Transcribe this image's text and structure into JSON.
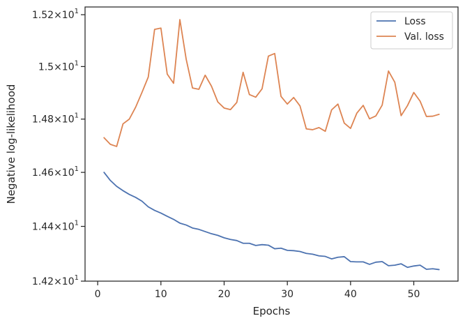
{
  "chart_data": {
    "type": "line",
    "title": "",
    "xlabel": "Epochs",
    "ylabel": "Negative log-likelihood",
    "xlim": [
      -2,
      57
    ],
    "ylim": [
      14.2,
      15.23
    ],
    "yscale": "log",
    "grid": false,
    "legend": "top-right",
    "x_ticks": [
      {
        "value": 0,
        "label": "0"
      },
      {
        "value": 10,
        "label": "10"
      },
      {
        "value": 20,
        "label": "20"
      },
      {
        "value": 30,
        "label": "30"
      },
      {
        "value": 40,
        "label": "40"
      },
      {
        "value": 50,
        "label": "50"
      }
    ],
    "y_ticks": [
      {
        "value": 14.2,
        "base": "1.42",
        "exp": "1"
      },
      {
        "value": 14.4,
        "base": "1.44",
        "exp": "1"
      },
      {
        "value": 14.6,
        "base": "1.46",
        "exp": "1"
      },
      {
        "value": 14.8,
        "base": "1.48",
        "exp": "1"
      },
      {
        "value": 15.0,
        "base": "1.5",
        "exp": "1"
      },
      {
        "value": 15.2,
        "base": "1.52",
        "exp": "1"
      }
    ],
    "x": [
      1,
      2,
      3,
      4,
      5,
      6,
      7,
      8,
      9,
      10,
      11,
      12,
      13,
      14,
      15,
      16,
      17,
      18,
      19,
      20,
      21,
      22,
      23,
      24,
      25,
      26,
      27,
      28,
      29,
      30,
      31,
      32,
      33,
      34,
      35,
      36,
      37,
      38,
      39,
      40,
      41,
      42,
      43,
      44,
      45,
      46,
      47,
      48,
      49,
      50,
      51,
      52,
      53,
      54
    ],
    "series": [
      {
        "name": "Loss",
        "color": "#4c72b0",
        "values": [
          14.6,
          14.57,
          14.548,
          14.532,
          14.518,
          14.507,
          14.493,
          14.472,
          14.459,
          14.449,
          14.437,
          14.426,
          14.412,
          14.405,
          14.394,
          14.389,
          14.381,
          14.373,
          14.367,
          14.358,
          14.352,
          14.348,
          14.338,
          14.338,
          14.33,
          14.333,
          14.331,
          14.318,
          14.32,
          14.312,
          14.311,
          14.308,
          14.301,
          14.298,
          14.292,
          14.29,
          14.281,
          14.287,
          14.289,
          14.271,
          14.27,
          14.27,
          14.261,
          14.269,
          14.271,
          14.256,
          14.258,
          14.263,
          14.25,
          14.255,
          14.258,
          14.243,
          14.245,
          14.242
        ]
      },
      {
        "name": "Val. loss",
        "color": "#dd8452",
        "values": [
          14.73,
          14.705,
          14.697,
          14.782,
          14.8,
          14.845,
          14.901,
          14.96,
          15.143,
          15.148,
          14.971,
          14.936,
          15.181,
          15.028,
          14.918,
          14.913,
          14.967,
          14.925,
          14.865,
          14.842,
          14.836,
          14.863,
          14.978,
          14.893,
          14.883,
          14.915,
          15.04,
          15.05,
          14.886,
          14.857,
          14.882,
          14.85,
          14.763,
          14.76,
          14.768,
          14.754,
          14.835,
          14.857,
          14.785,
          14.765,
          14.823,
          14.852,
          14.801,
          14.812,
          14.853,
          14.983,
          14.94,
          14.813,
          14.851,
          14.901,
          14.868,
          14.81,
          14.811,
          14.818
        ]
      }
    ]
  }
}
